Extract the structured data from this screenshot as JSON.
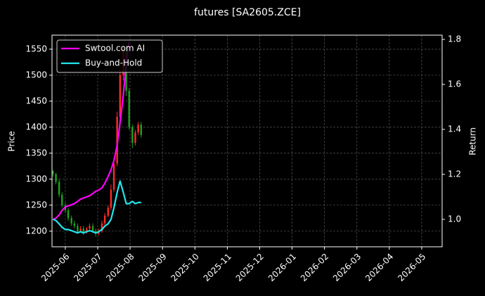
{
  "chart_data": {
    "type": "candlestick",
    "title": "futures [SA2605.ZCE]",
    "ylabel": "Price",
    "y2label": "Return",
    "x": [
      -0.38,
      -0.29,
      -0.19,
      -0.1,
      0.0,
      0.09,
      0.19,
      0.28,
      0.38,
      0.47,
      0.56,
      0.66,
      0.75,
      0.85,
      0.94,
      1.03,
      1.13,
      1.22,
      1.32,
      1.41,
      1.5,
      1.6,
      1.69,
      1.79,
      1.88,
      1.97,
      2.07,
      2.16,
      2.25,
      2.34
    ],
    "xlim": [
      -0.41,
      11.63
    ],
    "xticks": [
      {
        "value": 0,
        "label": "2025-06"
      },
      {
        "value": 1,
        "label": "2025-07"
      },
      {
        "value": 2,
        "label": "2025-08"
      },
      {
        "value": 3,
        "label": "2025-09"
      },
      {
        "value": 4,
        "label": "2025-10"
      },
      {
        "value": 5,
        "label": "2025-11"
      },
      {
        "value": 6,
        "label": "2025-12"
      },
      {
        "value": 7,
        "label": "2026-01"
      },
      {
        "value": 8,
        "label": "2026-02"
      },
      {
        "value": 9,
        "label": "2026-03"
      },
      {
        "value": 10,
        "label": "2026-04"
      },
      {
        "value": 11,
        "label": "2026-05"
      }
    ],
    "ylim": [
      1170,
      1577
    ],
    "yticks": [
      1200,
      1250,
      1300,
      1350,
      1400,
      1450,
      1500,
      1550
    ],
    "y2lim": [
      0.878,
      1.819
    ],
    "y2ticks": [
      {
        "value": 1,
        "label": "1.0"
      },
      {
        "value": 1.2,
        "label": "1.2"
      },
      {
        "value": 1.4,
        "label": "1.4"
      },
      {
        "value": 1.6,
        "label": "1.6"
      },
      {
        "value": 1.8,
        "label": "1.8"
      }
    ],
    "grid": true,
    "legend": "upper left",
    "up_color": "#ff2a2a",
    "down_color": "#1aa51a",
    "open": [
      1315,
      1310,
      1295,
      1270,
      1250,
      1240,
      1225,
      1215,
      1210,
      1200,
      1205,
      1198,
      1205,
      1210,
      1200,
      1195,
      1200,
      1215,
      1230,
      1245,
      1280,
      1330,
      1420,
      1500,
      1550,
      1470,
      1400,
      1370,
      1390,
      1405
    ],
    "high": [
      1318,
      1312,
      1300,
      1275,
      1255,
      1245,
      1230,
      1220,
      1215,
      1210,
      1210,
      1208,
      1215,
      1215,
      1205,
      1205,
      1220,
      1235,
      1250,
      1290,
      1340,
      1430,
      1510,
      1560,
      1555,
      1475,
      1405,
      1395,
      1410,
      1410
    ],
    "low": [
      1305,
      1290,
      1265,
      1245,
      1235,
      1220,
      1210,
      1205,
      1195,
      1198,
      1193,
      1195,
      1203,
      1197,
      1190,
      1192,
      1197,
      1212,
      1227,
      1240,
      1275,
      1325,
      1410,
      1490,
      1460,
      1395,
      1360,
      1365,
      1385,
      1380
    ],
    "close": [
      1310,
      1295,
      1270,
      1250,
      1240,
      1225,
      1215,
      1210,
      1200,
      1205,
      1198,
      1205,
      1210,
      1200,
      1195,
      1200,
      1215,
      1230,
      1245,
      1280,
      1330,
      1420,
      1500,
      1550,
      1470,
      1400,
      1370,
      1390,
      1405,
      1385
    ],
    "series": [
      {
        "name": "Swtool.com AI",
        "color": "#ff00ff",
        "axis": "y2",
        "values": [
          1.0,
          1.005,
          1.02,
          1.04,
          1.055,
          1.06,
          1.065,
          1.07,
          1.08,
          1.09,
          1.095,
          1.1,
          1.105,
          1.115,
          1.125,
          1.13,
          1.14,
          1.16,
          1.19,
          1.22,
          1.26,
          1.33,
          1.43,
          1.55,
          1.7,
          1.79,
          null,
          null,
          null,
          null
        ]
      },
      {
        "name": "Buy-and-Hold",
        "color": "#22e6f0",
        "axis": "y2",
        "values": [
          1.0,
          0.995,
          0.98,
          0.965,
          0.955,
          0.955,
          0.95,
          0.945,
          0.94,
          0.945,
          0.94,
          0.945,
          0.95,
          0.945,
          0.94,
          0.945,
          0.955,
          0.97,
          0.98,
          1.0,
          1.05,
          1.12,
          1.17,
          1.12,
          1.07,
          1.07,
          1.08,
          1.07,
          1.075,
          1.075
        ]
      }
    ]
  }
}
